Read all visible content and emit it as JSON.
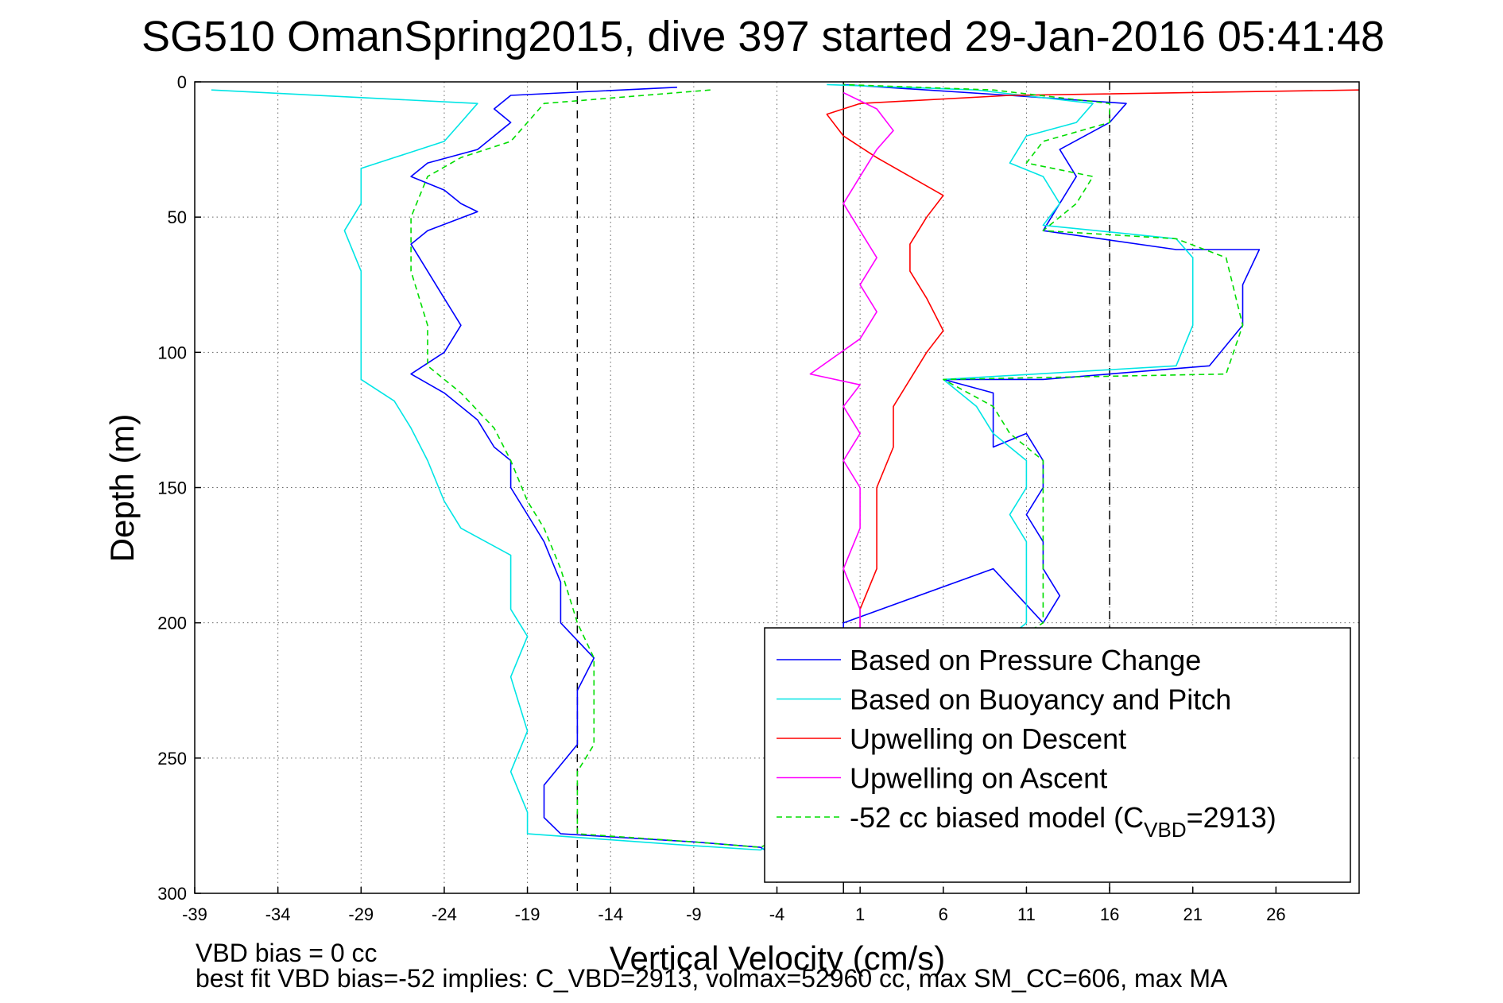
{
  "chart_data": {
    "type": "line",
    "title": "SG510 OmanSpring2015, dive 397 started 29-Jan-2016 05:41:48",
    "xlabel": "Vertical Velocity (cm/s)",
    "ylabel": "Depth (m)",
    "xlim": [
      -39,
      31
    ],
    "ylim": [
      300,
      0
    ],
    "y_reversed": true,
    "grid": true,
    "xticks": [
      -39,
      -34,
      -29,
      -24,
      -19,
      -14,
      -9,
      -4,
      1,
      6,
      11,
      16,
      21,
      26
    ],
    "yticks": [
      0,
      50,
      100,
      150,
      200,
      250,
      300
    ],
    "reference_lines": [
      {
        "x": -16,
        "style": "dashed",
        "color": "#000000"
      },
      {
        "x": 0,
        "style": "solid",
        "color": "#000000"
      },
      {
        "x": 16,
        "style": "dashed",
        "color": "#000000"
      }
    ],
    "legend_position": "lower-right",
    "series": [
      {
        "name": "Based on Pressure Change",
        "color": "#0000ff",
        "style": "solid",
        "points": [
          [
            -10,
            2
          ],
          [
            -20,
            5
          ],
          [
            -21,
            10
          ],
          [
            -20,
            15
          ],
          [
            -21,
            20
          ],
          [
            -22,
            25
          ],
          [
            -25,
            30
          ],
          [
            -26,
            35
          ],
          [
            -24,
            40
          ],
          [
            -23,
            45
          ],
          [
            -22,
            48
          ],
          [
            -25,
            55
          ],
          [
            -26,
            60
          ],
          [
            -25,
            70
          ],
          [
            -24,
            80
          ],
          [
            -23,
            90
          ],
          [
            -24,
            100
          ],
          [
            -26,
            108
          ],
          [
            -24,
            115
          ],
          [
            -22,
            125
          ],
          [
            -21,
            135
          ],
          [
            -20,
            140
          ],
          [
            -20,
            150
          ],
          [
            -19,
            160
          ],
          [
            -18,
            170
          ],
          [
            -17,
            185
          ],
          [
            -17,
            200
          ],
          [
            -15,
            213
          ],
          [
            -16,
            225
          ],
          [
            -16,
            245
          ],
          [
            -18,
            260
          ],
          [
            -18,
            272
          ],
          [
            -17,
            278
          ],
          [
            -9,
            281
          ],
          [
            -5,
            283
          ],
          [
            -3,
            290
          ],
          [
            -1,
            280
          ],
          [
            0,
            250
          ],
          [
            0,
            200
          ],
          [
            9,
            180
          ],
          [
            12,
            200
          ],
          [
            13,
            190
          ],
          [
            12,
            180
          ],
          [
            12,
            170
          ],
          [
            11,
            160
          ],
          [
            12,
            150
          ],
          [
            12,
            140
          ],
          [
            11,
            130
          ],
          [
            9,
            135
          ],
          [
            9,
            125
          ],
          [
            9,
            115
          ],
          [
            6,
            110
          ],
          [
            12,
            110
          ],
          [
            22,
            105
          ],
          [
            24,
            90
          ],
          [
            24,
            75
          ],
          [
            25,
            62
          ],
          [
            20,
            62
          ],
          [
            12,
            55
          ],
          [
            13,
            45
          ],
          [
            14,
            35
          ],
          [
            13,
            25
          ],
          [
            16,
            15
          ],
          [
            17,
            8
          ],
          [
            10,
            5
          ],
          [
            0,
            1
          ]
        ]
      },
      {
        "name": "Based on Buoyancy and Pitch",
        "color": "#00e5e5",
        "style": "solid",
        "points": [
          [
            -38,
            3
          ],
          [
            -22,
            8
          ],
          [
            -23,
            15
          ],
          [
            -24,
            22
          ],
          [
            -27,
            28
          ],
          [
            -29,
            32
          ],
          [
            -29,
            45
          ],
          [
            -30,
            55
          ],
          [
            -29,
            70
          ],
          [
            -29,
            90
          ],
          [
            -29,
            110
          ],
          [
            -27,
            118
          ],
          [
            -26,
            128
          ],
          [
            -25,
            140
          ],
          [
            -24,
            155
          ],
          [
            -23,
            165
          ],
          [
            -20,
            175
          ],
          [
            -20,
            195
          ],
          [
            -19,
            205
          ],
          [
            -20,
            220
          ],
          [
            -19,
            240
          ],
          [
            -20,
            255
          ],
          [
            -19,
            270
          ],
          [
            -19,
            278
          ],
          [
            -10,
            282
          ],
          [
            -5,
            284
          ],
          [
            0,
            270
          ],
          [
            8,
            215
          ],
          [
            11,
            200
          ],
          [
            11,
            180
          ],
          [
            11,
            170
          ],
          [
            10,
            160
          ],
          [
            11,
            150
          ],
          [
            11,
            140
          ],
          [
            9,
            130
          ],
          [
            8,
            120
          ],
          [
            6,
            110
          ],
          [
            20,
            105
          ],
          [
            21,
            90
          ],
          [
            21,
            65
          ],
          [
            20,
            58
          ],
          [
            12,
            53
          ],
          [
            13,
            45
          ],
          [
            12,
            35
          ],
          [
            10,
            30
          ],
          [
            11,
            20
          ],
          [
            14,
            15
          ],
          [
            15,
            8
          ],
          [
            8,
            3
          ],
          [
            -1,
            1
          ]
        ]
      },
      {
        "name": "Upwelling on Descent",
        "color": "#ff0000",
        "style": "solid",
        "points": [
          [
            31,
            3
          ],
          [
            10,
            5
          ],
          [
            1,
            8
          ],
          [
            -1,
            12
          ],
          [
            0,
            20
          ],
          [
            2,
            28
          ],
          [
            4,
            35
          ],
          [
            6,
            42
          ],
          [
            5,
            50
          ],
          [
            4,
            60
          ],
          [
            4,
            70
          ],
          [
            5,
            80
          ],
          [
            6,
            92
          ],
          [
            5,
            100
          ],
          [
            4,
            110
          ],
          [
            3,
            120
          ],
          [
            3,
            135
          ],
          [
            2,
            150
          ],
          [
            2,
            165
          ],
          [
            2,
            180
          ],
          [
            1,
            195
          ],
          [
            1,
            202
          ]
        ]
      },
      {
        "name": "Upwelling on Ascent",
        "color": "#ff00ff",
        "style": "solid",
        "points": [
          [
            0,
            4
          ],
          [
            2,
            10
          ],
          [
            3,
            18
          ],
          [
            2,
            25
          ],
          [
            1,
            35
          ],
          [
            0,
            45
          ],
          [
            1,
            55
          ],
          [
            2,
            65
          ],
          [
            1,
            75
          ],
          [
            2,
            85
          ],
          [
            1,
            95
          ],
          [
            -2,
            108
          ],
          [
            1,
            112
          ],
          [
            0,
            120
          ],
          [
            1,
            130
          ],
          [
            0,
            140
          ],
          [
            1,
            150
          ],
          [
            1,
            165
          ],
          [
            0,
            180
          ],
          [
            1,
            195
          ],
          [
            1,
            202
          ]
        ]
      },
      {
        "name": "-52 cc biased model (C_VBD=2913)",
        "color": "#00dd00",
        "style": "dashed",
        "points": [
          [
            -8,
            3
          ],
          [
            -18,
            8
          ],
          [
            -19,
            15
          ],
          [
            -20,
            22
          ],
          [
            -23,
            28
          ],
          [
            -25,
            35
          ],
          [
            -26,
            50
          ],
          [
            -26,
            70
          ],
          [
            -25,
            90
          ],
          [
            -25,
            105
          ],
          [
            -23,
            115
          ],
          [
            -21,
            128
          ],
          [
            -20,
            140
          ],
          [
            -19,
            155
          ],
          [
            -18,
            165
          ],
          [
            -17,
            180
          ],
          [
            -16,
            200
          ],
          [
            -15,
            213
          ],
          [
            -15,
            230
          ],
          [
            -15,
            245
          ],
          [
            -16,
            255
          ],
          [
            -16,
            270
          ],
          [
            -16,
            278
          ],
          [
            -9,
            281
          ],
          [
            -5,
            283
          ],
          [
            0,
            270
          ],
          [
            8,
            215
          ],
          [
            12,
            200
          ],
          [
            12,
            180
          ],
          [
            12,
            165
          ],
          [
            12,
            150
          ],
          [
            12,
            140
          ],
          [
            10,
            130
          ],
          [
            9,
            120
          ],
          [
            6,
            110
          ],
          [
            23,
            108
          ],
          [
            24,
            90
          ],
          [
            23,
            65
          ],
          [
            20,
            58
          ],
          [
            12,
            55
          ],
          [
            14,
            45
          ],
          [
            15,
            35
          ],
          [
            11,
            30
          ],
          [
            12,
            22
          ],
          [
            16,
            15
          ],
          [
            16,
            8
          ],
          [
            9,
            3
          ],
          [
            0,
            1
          ]
        ]
      }
    ],
    "legend_entries": [
      "Based on Pressure Change",
      "Based on Buoyancy and Pitch",
      "Upwelling on Descent",
      "Upwelling on Ascent",
      "-52 cc biased model (C"
    ],
    "legend_last_sub": "VBD",
    "legend_last_tail": "=2913)",
    "footnotes": [
      "VBD bias = 0 cc",
      "best fit VBD bias=-52 implies: C_VBD=2913, volmax=52960 cc, max SM_CC=606, max MA"
    ]
  }
}
